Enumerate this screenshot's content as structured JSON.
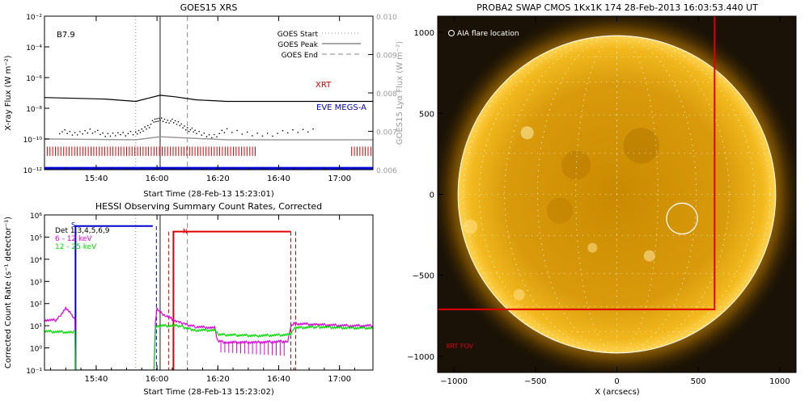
{
  "chart_data": [
    {
      "type": "line",
      "title": "GOES15 XRS",
      "xlabel": "Start Time (28-Feb-13 15:23:01)",
      "ylabel": "X-ray Flux (W m⁻²)",
      "ylabel_right": "GOES15 Lyα Flux (W m⁻²)",
      "x_ticks": [
        "15:40",
        "16:00",
        "16:20",
        "16:40",
        "17:00"
      ],
      "x_ticks_min": [
        17,
        37,
        57,
        77,
        97
      ],
      "xlim_min": [
        0,
        108
      ],
      "y_ticks": [
        "10⁻¹²",
        "10⁻¹⁰",
        "10⁻⁸",
        "10⁻⁶",
        "10⁻⁴",
        "10⁻²"
      ],
      "ylim_log": [
        -12,
        -2
      ],
      "y2_ticks": [
        "0.006",
        "0.007",
        "0.008",
        "0.009",
        "0.010"
      ],
      "ylim2": [
        0.006,
        0.01
      ],
      "class_label": "B7.9",
      "legend": [
        {
          "label": "GOES Start",
          "style": "dotted"
        },
        {
          "label": "GOES Peak",
          "style": "solid"
        },
        {
          "label": "GOES End",
          "style": "dashed"
        }
      ],
      "event_lines_min": {
        "start": 30,
        "peak": 38,
        "end": 47
      },
      "instrument_labels": [
        {
          "label": "XRT",
          "color": "#e00000"
        },
        {
          "label": "EVE MEGS-A",
          "color": "#0000cc"
        }
      ],
      "series": [
        {
          "name": "long",
          "color": "#000000",
          "x": [
            0,
            20,
            30,
            35,
            38,
            43,
            50,
            60,
            108
          ],
          "y": [
            -7.3,
            -7.4,
            -7.55,
            -7.3,
            -7.15,
            -7.25,
            -7.45,
            -7.55,
            -7.55
          ]
        },
        {
          "name": "short",
          "color": "#000000",
          "style": "dots",
          "x": [
            5,
            10,
            15,
            20,
            25,
            30,
            33,
            36,
            38,
            41,
            44,
            47,
            50,
            55,
            60,
            70,
            80,
            90
          ],
          "y": [
            -9.5,
            -9.7,
            -9.4,
            -9.8,
            -9.6,
            -9.7,
            -9.3,
            -8.9,
            -8.7,
            -8.8,
            -9.0,
            -9.3,
            -9.6,
            -9.8,
            -9.5,
            -9.7,
            -9.6,
            -9.4
          ]
        },
        {
          "name": "lya",
          "color": "#999999",
          "x": [
            0,
            30,
            38,
            60,
            108
          ],
          "y": [
            -10.0,
            -10.05,
            -9.85,
            -10.05,
            -10.05
          ]
        }
      ],
      "xrt_coverage_min": [
        [
          0,
          70
        ],
        [
          101,
          108
        ]
      ],
      "eve_coverage_min": [
        [
          0,
          108
        ]
      ]
    },
    {
      "type": "line",
      "title": "HESSI Observing Summary Count Rates, Corrected",
      "xlabel": "Start Time (28-Feb-13 15:23:02)",
      "ylabel": "Corrected Count Rate (s⁻¹ detector⁻¹)",
      "x_ticks": [
        "15:40",
        "16:00",
        "16:20",
        "16:40",
        "17:00"
      ],
      "x_ticks_min": [
        17,
        37,
        57,
        77,
        97
      ],
      "xlim_min": [
        0,
        108
      ],
      "y_ticks": [
        "10⁻¹",
        "10⁰",
        "10¹",
        "10²",
        "10³",
        "10⁴",
        "10⁵",
        "10⁶"
      ],
      "ylim_log": [
        -1,
        6
      ],
      "legend": [
        {
          "label": "Det 1,3,4,5,6,9",
          "color": "#000000"
        },
        {
          "label": "6 - 12 keV",
          "color": "#e000e0"
        },
        {
          "label": "12 - 25 keV",
          "color": "#00dd00"
        }
      ],
      "markers": [
        "S",
        "N"
      ],
      "series": [
        {
          "name": "6 - 12 keV",
          "color": "#e000e0",
          "x": [
            0,
            4,
            7,
            9,
            10,
            10.2,
            36,
            36.5,
            37,
            38,
            40,
            42,
            44,
            46,
            47,
            48,
            50,
            56,
            57,
            60,
            70,
            80,
            81,
            82,
            90,
            100,
            108
          ],
          "y": [
            1.25,
            1.25,
            1.8,
            1.5,
            1.3,
            -1,
            -1,
            1.2,
            1.8,
            1.6,
            1.45,
            1.3,
            1.15,
            1.1,
            1.05,
            1.0,
            0.95,
            0.9,
            0.3,
            0.25,
            0.25,
            0.3,
            1.0,
            1.1,
            1.05,
            1.0,
            1.0
          ]
        },
        {
          "name": "12 - 25 keV",
          "color": "#00dd00",
          "x": [
            0,
            9,
            10,
            10.2,
            36,
            36.5,
            37,
            45,
            46,
            50,
            56,
            57,
            70,
            81,
            82,
            90,
            100,
            108
          ],
          "y": [
            0.75,
            0.7,
            0.8,
            -1,
            -1,
            0.9,
            1.0,
            1.0,
            0.9,
            0.8,
            0.8,
            0.6,
            0.55,
            0.6,
            0.9,
            0.95,
            0.9,
            0.9
          ]
        }
      ],
      "attenuator_states": [
        {
          "color": "#0000cc",
          "from_min": 10.2,
          "to_min": 35.6,
          "level_log": 5.5,
          "dashed_end_min": 36.8
        },
        {
          "color": "#e00000",
          "from_min": 42.4,
          "to_min": 81,
          "level_log": 5.25,
          "dashed_start_min": 40.8,
          "dashed_end_min": 82.6
        }
      ],
      "event_lines_min": {
        "start": 30,
        "peak": 38,
        "end": 47
      }
    },
    {
      "type": "scatter",
      "title": "PROBA2 SWAP CMOS 1Kx1K 174 28-Feb-2013 16:03:53.440 UT",
      "xlabel": "X (arcsecs)",
      "ylabel": "",
      "x_ticks": [
        "−1000",
        "−500",
        "0",
        "500",
        "1000"
      ],
      "y_ticks": [
        "−1000",
        "−500",
        "0",
        "500",
        "1000"
      ],
      "xlim": [
        -1100,
        1100
      ],
      "ylim": [
        -1100,
        1100
      ],
      "solar_radius_arcsec": 975,
      "aia_flare_location": {
        "label": "AIA flare location",
        "x": 400,
        "y": -150
      },
      "xrt_fov": {
        "label": "XRT FOV",
        "x_range": [
          -1100,
          600
        ],
        "y_range": [
          -710,
          1100
        ],
        "color": "#e00000"
      },
      "grid": true
    }
  ]
}
